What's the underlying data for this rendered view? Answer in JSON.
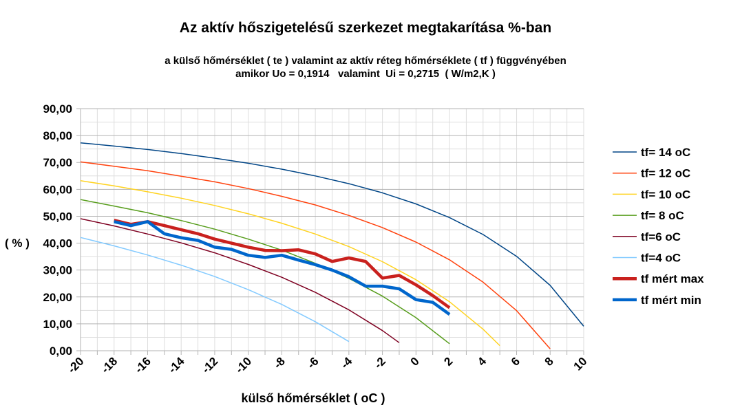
{
  "chart_data": {
    "type": "line",
    "title": "Az aktív hőszigetelésű szerkezet megtakarítása %-ban",
    "subtitle_lines": [
      "a külső hőmérséklet ( te ) valamint az aktív réteg hőmérséklete ( tf ) függvényében",
      "amikor Uo = 0,1914   valamint  Ui = 0,2715  ( W/m2,K )"
    ],
    "xlabel": "külső hőmérséklet ( oC )",
    "ylabel": "( % )",
    "xlim": [
      -20,
      10
    ],
    "ylim": [
      0,
      90
    ],
    "x_ticks": [
      "-20",
      "-18",
      "-16",
      "-14",
      "-12",
      "-10",
      "-8",
      "-6",
      "-4",
      "-2",
      "0",
      "2",
      "4",
      "6",
      "8",
      "10"
    ],
    "y_ticks": [
      "0,00",
      "10,00",
      "20,00",
      "30,00",
      "40,00",
      "50,00",
      "60,00",
      "70,00",
      "80,00",
      "90,00"
    ],
    "grid": true,
    "legend_position": "right",
    "series": [
      {
        "name": "tf= 14 oC",
        "color": "#004586",
        "width": 1.5,
        "x": [
          -20,
          -18,
          -16,
          -14,
          -12,
          -10,
          -8,
          -6,
          -4,
          -2,
          0,
          2,
          4,
          6,
          8,
          10
        ],
        "y": [
          77.3,
          76.1,
          74.8,
          73.3,
          71.6,
          69.7,
          67.5,
          65.0,
          62.1,
          58.7,
          54.6,
          49.5,
          43.2,
          35.1,
          24.3,
          9.1
        ]
      },
      {
        "name": "tf= 12 oC",
        "color": "#ff420e",
        "width": 1.5,
        "x": [
          -20,
          -18,
          -16,
          -14,
          -12,
          -10,
          -8,
          -6,
          -4,
          -2,
          0,
          2,
          4,
          6,
          8
        ],
        "y": [
          70.2,
          68.6,
          66.9,
          64.9,
          62.8,
          60.3,
          57.4,
          54.2,
          50.3,
          45.8,
          40.4,
          33.8,
          25.5,
          14.9,
          0.7
        ]
      },
      {
        "name": "tf= 10 oC",
        "color": "#ffd320",
        "width": 1.5,
        "x": [
          -20,
          -18,
          -16,
          -14,
          -12,
          -10,
          -8,
          -6,
          -4,
          -2,
          0,
          2,
          4,
          5
        ],
        "y": [
          63.2,
          61.3,
          59.1,
          56.7,
          54.0,
          50.9,
          47.4,
          43.4,
          38.7,
          33.1,
          26.4,
          18.2,
          8.0,
          1.9
        ]
      },
      {
        "name": "tf= 8 oC",
        "color": "#579d1c",
        "width": 1.5,
        "x": [
          -20,
          -18,
          -16,
          -14,
          -12,
          -10,
          -8,
          -6,
          -4,
          -2,
          0,
          2
        ],
        "y": [
          56.2,
          53.8,
          51.3,
          48.4,
          45.2,
          41.5,
          37.4,
          32.5,
          26.9,
          20.3,
          12.3,
          2.6
        ]
      },
      {
        "name": "tf=6 oC",
        "color": "#7e0021",
        "width": 1.5,
        "x": [
          -20,
          -18,
          -16,
          -14,
          -12,
          -10,
          -8,
          -6,
          -4,
          -2,
          -1
        ],
        "y": [
          49.1,
          46.4,
          43.4,
          40.1,
          36.4,
          32.1,
          27.3,
          21.7,
          15.2,
          7.5,
          3.0
        ]
      },
      {
        "name": "tf=4 oC",
        "color": "#83caff",
        "width": 1.5,
        "x": [
          -20,
          -18,
          -16,
          -14,
          -12,
          -10,
          -8,
          -6,
          -4
        ],
        "y": [
          42.1,
          39.0,
          35.6,
          31.8,
          27.6,
          22.7,
          17.2,
          10.8,
          3.4
        ]
      },
      {
        "name": "tf mért max",
        "color": "#c9211e",
        "width": 4.5,
        "x": [
          -18,
          -17,
          -16,
          -15,
          -14,
          -13,
          -12,
          -11,
          -10,
          -9,
          -8,
          -7,
          -6,
          -5,
          -4,
          -3,
          -2,
          -1,
          0,
          1,
          2
        ],
        "y": [
          48.5,
          47,
          48,
          46.5,
          45,
          43.5,
          41.5,
          40,
          38.5,
          37.3,
          37.2,
          37.5,
          36,
          33.2,
          34.5,
          33.2,
          27,
          28,
          24.5,
          20.5,
          16
        ]
      },
      {
        "name": "tf mért min",
        "color": "#0066cc",
        "width": 4.5,
        "x": [
          -18,
          -17,
          -16,
          -15,
          -14,
          -13,
          -12,
          -11,
          -10,
          -9,
          -8,
          -7,
          -6,
          -5,
          -4,
          -3,
          -2,
          -1,
          0,
          1,
          2
        ],
        "y": [
          48,
          46.5,
          48,
          43.5,
          42,
          41,
          38.5,
          37.7,
          35.5,
          34.7,
          35.5,
          33.7,
          32,
          30,
          27.5,
          24,
          24,
          23,
          19,
          18,
          13.5
        ]
      }
    ]
  }
}
